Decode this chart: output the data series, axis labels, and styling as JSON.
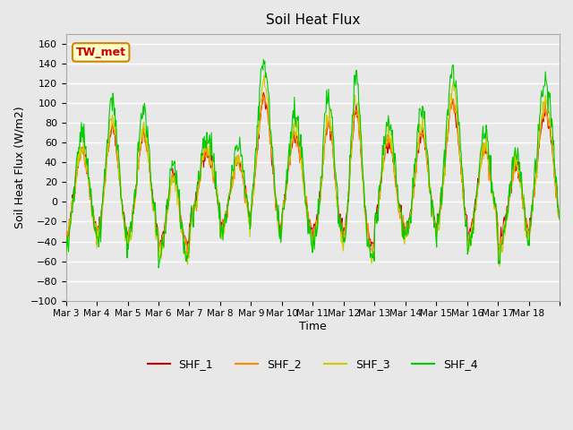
{
  "title": "Soil Heat Flux",
  "xlabel": "Time",
  "ylabel": "Soil Heat Flux (W/m2)",
  "ylim": [
    -100,
    170
  ],
  "yticks": [
    -100,
    -80,
    -60,
    -40,
    -20,
    0,
    20,
    40,
    60,
    80,
    100,
    120,
    140,
    160
  ],
  "x_tick_positions": [
    0,
    1,
    2,
    3,
    4,
    5,
    6,
    7,
    8,
    9,
    10,
    11,
    12,
    13,
    14,
    15,
    16
  ],
  "x_tick_labels": [
    "Mar 3",
    "Mar 4",
    "Mar 5",
    "Mar 6",
    "Mar 7",
    "Mar 8",
    "Mar 9",
    "Mar 10",
    "Mar 11",
    "Mar 12",
    "Mar 13",
    "Mar 14",
    "Mar 15",
    "Mar 16",
    "Mar 17",
    "Mar 18",
    ""
  ],
  "annotation_text": "TW_met",
  "annotation_bg": "#ffffcc",
  "annotation_border": "#cc8800",
  "colors": {
    "SHF_1": "#cc0000",
    "SHF_2": "#ff8800",
    "SHF_3": "#cccc00",
    "SHF_4": "#00cc00"
  },
  "legend_labels": [
    "SHF_1",
    "SHF_2",
    "SHF_3",
    "SHF_4"
  ],
  "plot_bg_color": "#e8e8e8",
  "grid_color": "#ffffff",
  "n_days": 16,
  "points_per_day": 48,
  "seed": 42
}
